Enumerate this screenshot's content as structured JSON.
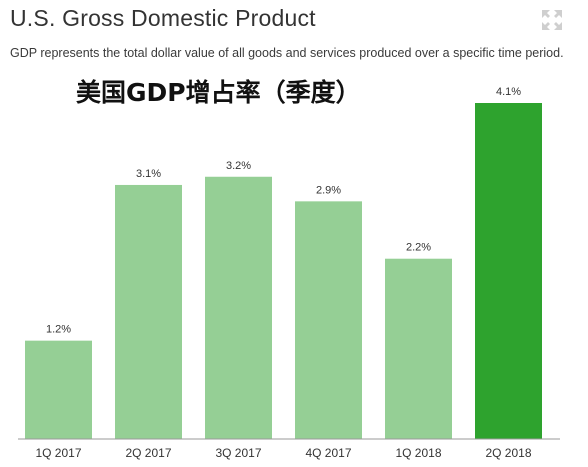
{
  "header": {
    "title": "U.S. Gross Domestic Product",
    "subtitle": "GDP represents the total dollar value of all goods and services produced over a specific time period.",
    "overlay_title": "美国GDP增占率（季度）",
    "expand_icon": "expand-icon"
  },
  "colors": {
    "bar": "#95cf95",
    "bar_highlight": "#2ea32e",
    "baseline": "#9a9a9a",
    "label": "#333333"
  },
  "chart_data": {
    "type": "bar",
    "categories": [
      "1Q 2017",
      "2Q 2017",
      "3Q 2017",
      "4Q 2017",
      "1Q 2018",
      "2Q 2018"
    ],
    "values": [
      1.2,
      3.1,
      3.2,
      2.9,
      2.2,
      4.1
    ],
    "data_labels": [
      "1.2%",
      "3.1%",
      "3.2%",
      "2.9%",
      "2.2%",
      "4.1%"
    ],
    "highlight_index": 5,
    "ylim": [
      0,
      4.1
    ],
    "title": "U.S. Gross Domestic Product",
    "xlabel": "",
    "ylabel": "",
    "grid": false,
    "legend": "none"
  }
}
